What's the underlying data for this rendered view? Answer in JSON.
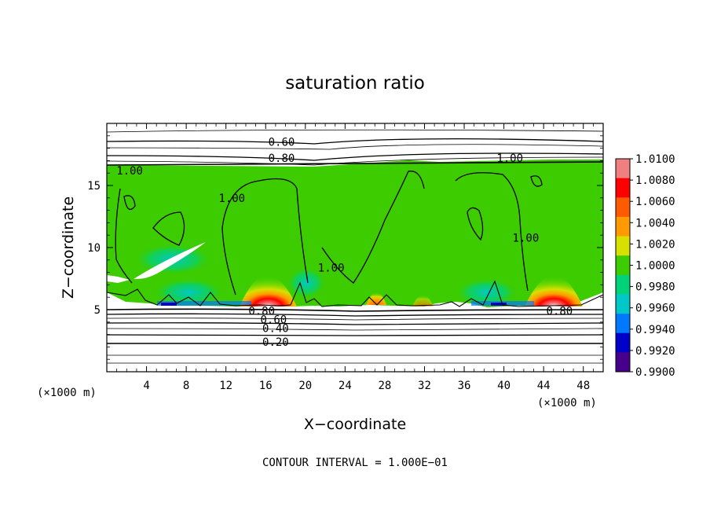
{
  "chart_data": {
    "type": "heatmap",
    "title": "saturation ratio",
    "xlabel": "X−coordinate",
    "ylabel": "Z−coordinate",
    "x_unit_left": "(×1000 m)",
    "x_unit_right": "(×1000 m)",
    "footer": "CONTOUR INTERVAL = 1.000E−01",
    "xlim": [
      0,
      50
    ],
    "ylim": [
      0,
      20
    ],
    "x_ticks": [
      4,
      8,
      12,
      16,
      20,
      24,
      28,
      32,
      36,
      40,
      44,
      48
    ],
    "x_tick_labels": [
      "4",
      "8",
      "12",
      "16",
      "20",
      "24",
      "28",
      "32",
      "36",
      "40",
      "44",
      "48"
    ],
    "y_ticks": [
      5,
      10,
      15
    ],
    "y_tick_labels": [
      "5",
      "10",
      "15"
    ],
    "colorbar": {
      "labels": [
        "1.0100",
        "1.0080",
        "1.0060",
        "1.0040",
        "1.0020",
        "1.0000",
        "0.9980",
        "0.9960",
        "0.9940",
        "0.9920",
        "0.9900"
      ],
      "colors": [
        "#f08080",
        "#ff0000",
        "#ff5a00",
        "#ff9b00",
        "#d8e000",
        "#3ccc00",
        "#00d27a",
        "#00c8c8",
        "#0078ff",
        "#0000c8",
        "#46008c"
      ]
    },
    "cloud_region": {
      "x_range": [
        0,
        50
      ],
      "z_range": [
        5.3,
        16.8
      ],
      "base_value": 1.0
    },
    "hotspots": [
      {
        "x": 15.5,
        "z": 5.3,
        "value": 1.01
      },
      {
        "x": 44.2,
        "z": 5.3,
        "value": 1.01
      },
      {
        "x": 27.5,
        "z": 5.8,
        "value": 1.004
      },
      {
        "x": 31.5,
        "z": 5.8,
        "value": 1.002
      }
    ],
    "contour_labels": [
      {
        "text": "0.60",
        "x": 17.6,
        "z": 18.5
      },
      {
        "text": "0.80",
        "x": 17.6,
        "z": 17.2
      },
      {
        "text": "1.00",
        "x": 2.3,
        "z": 16.2
      },
      {
        "text": "1.00",
        "x": 40.6,
        "z": 17.2
      },
      {
        "text": "1.00",
        "x": 12.6,
        "z": 14.0
      },
      {
        "text": "1.00",
        "x": 22.6,
        "z": 8.4
      },
      {
        "text": "1.00",
        "x": 42.2,
        "z": 10.8
      },
      {
        "text": "0.80",
        "x": 15.6,
        "z": 4.9
      },
      {
        "text": "0.60",
        "x": 16.8,
        "z": 4.2
      },
      {
        "text": "0.40",
        "x": 17.0,
        "z": 3.5
      },
      {
        "text": "0.20",
        "x": 17.0,
        "z": 2.4
      },
      {
        "text": "0.80",
        "x": 45.6,
        "z": 4.9
      }
    ]
  }
}
